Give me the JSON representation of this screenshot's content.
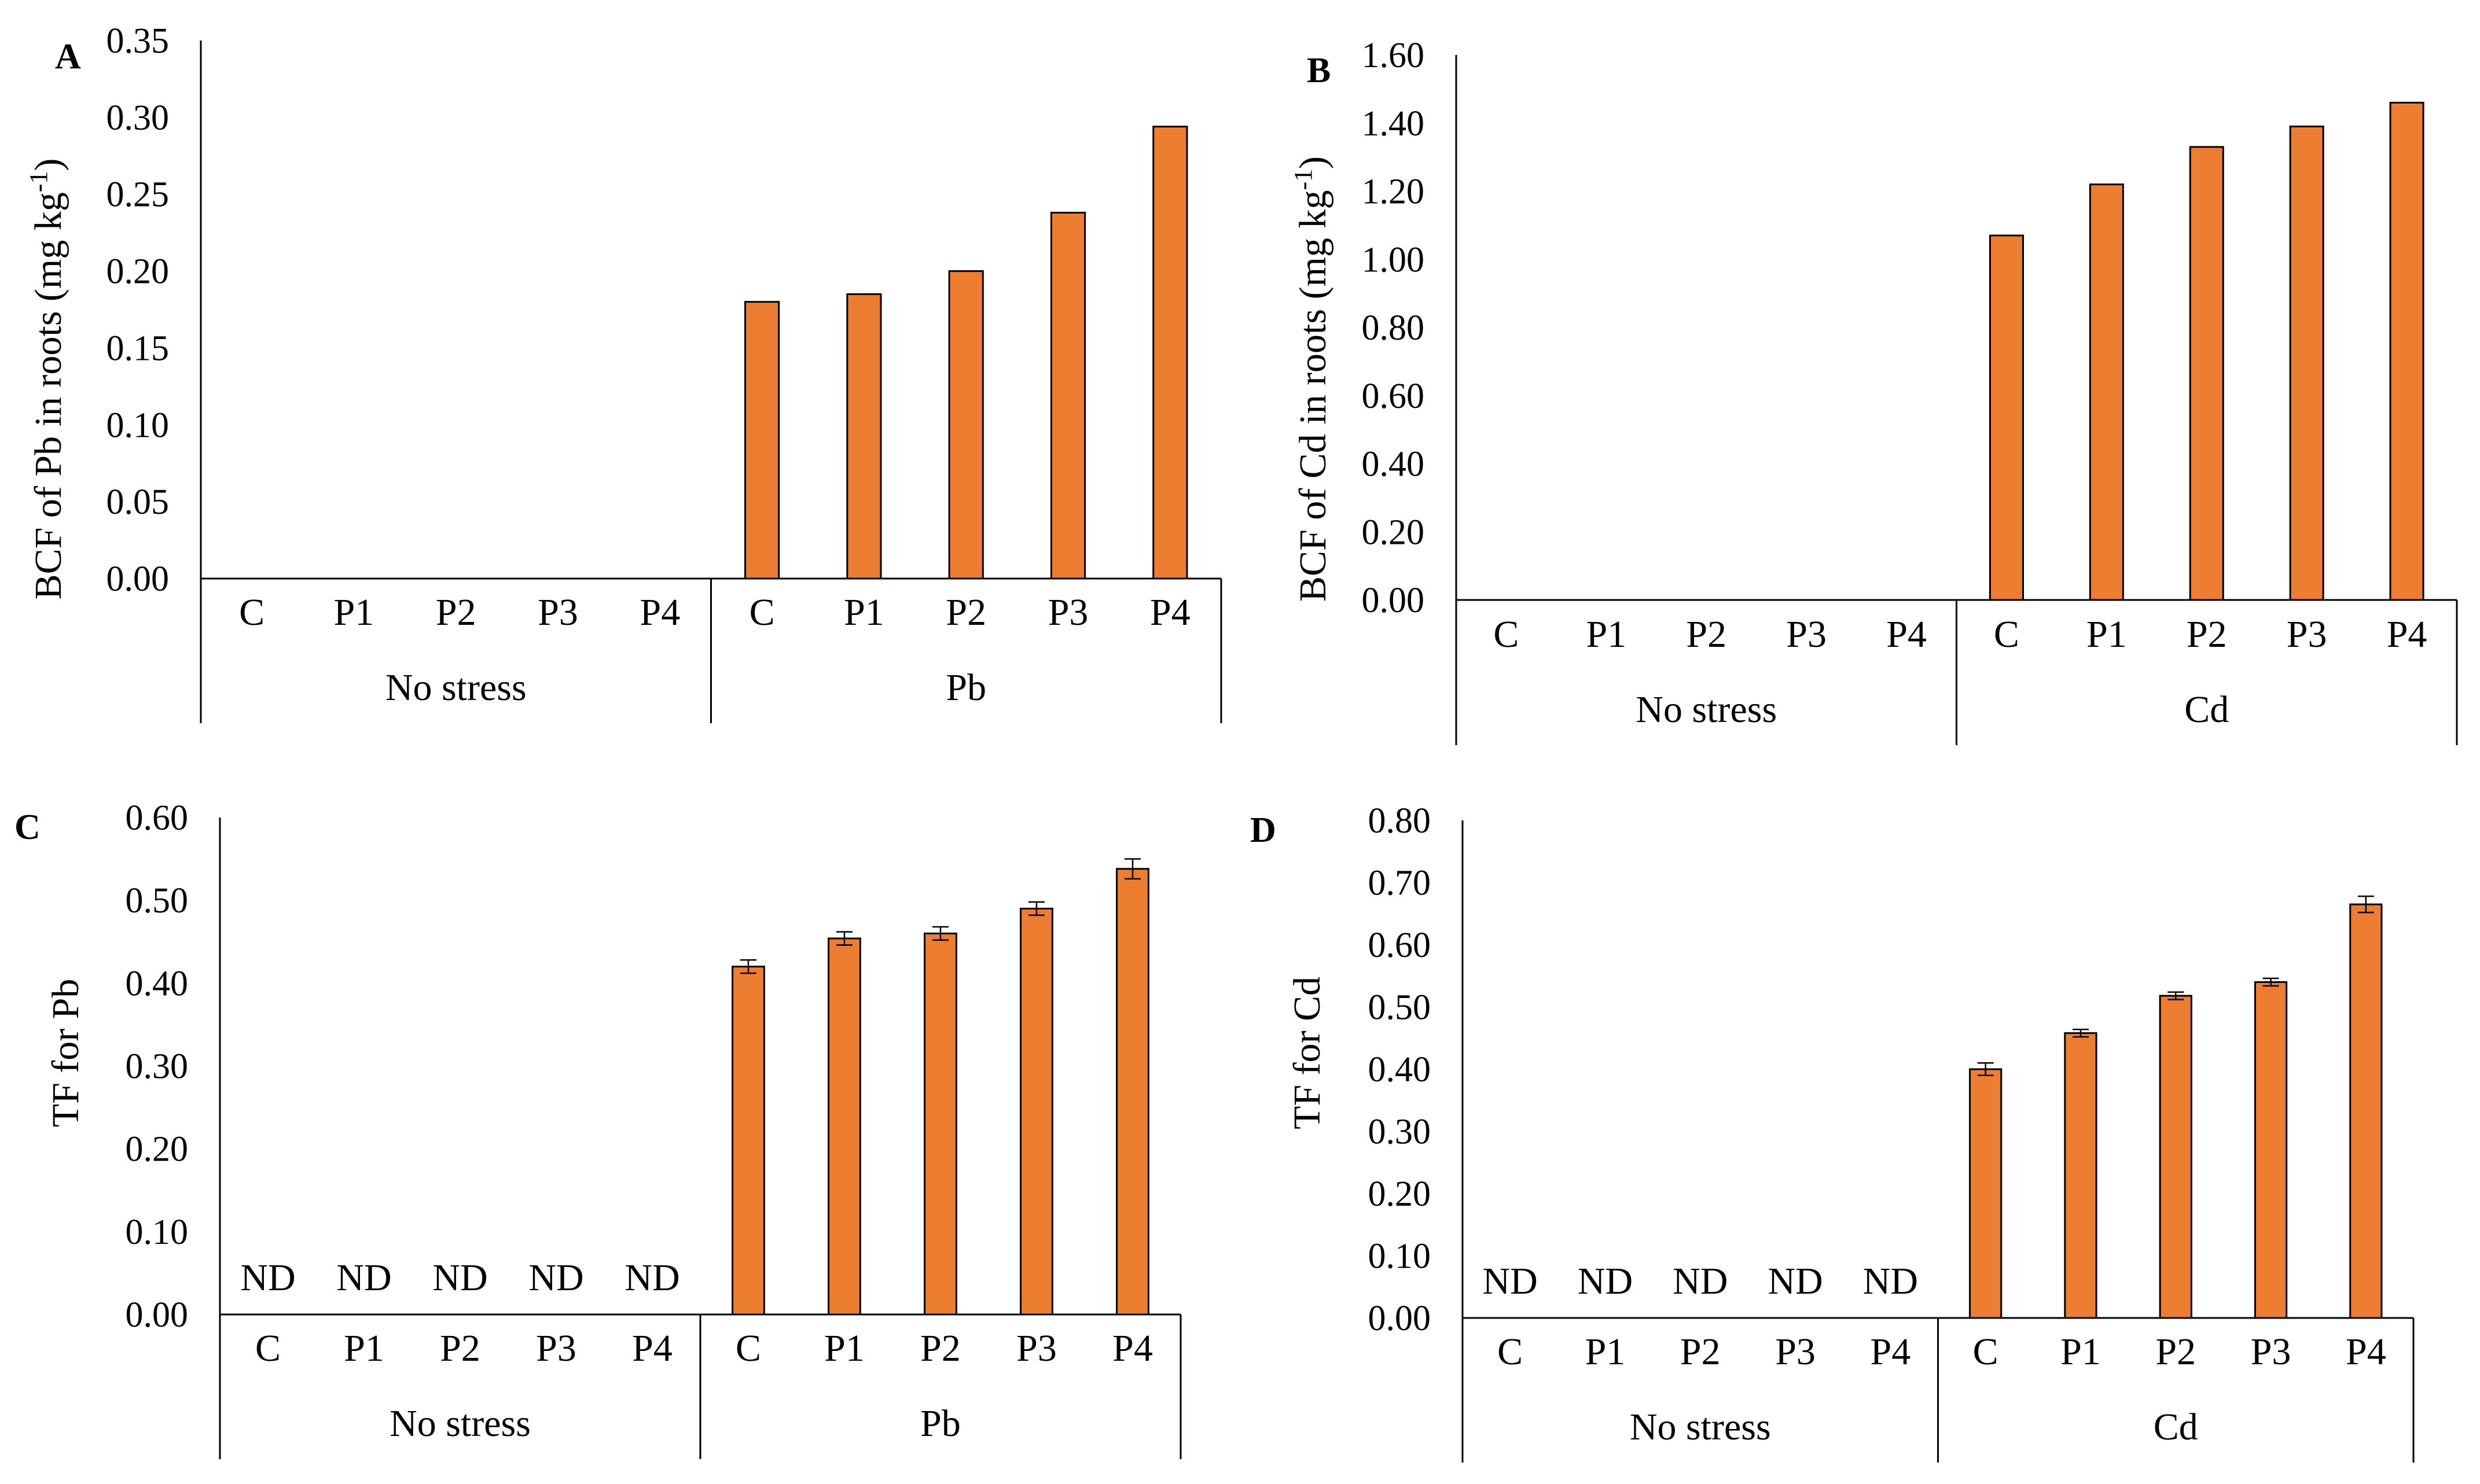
{
  "colors": {
    "bar_fill": "#ED7D31",
    "bar_stroke": "#000000",
    "axis": "#000000"
  },
  "chart_data": [
    {
      "panel": "A",
      "type": "bar",
      "title": "",
      "ylabel": "BCF of Pb in roots (mg kg-1)",
      "ylabel_main": "BCF of Pb in roots (mg kg",
      "ylabel_sup": "-1",
      "ylabel_end": ")",
      "ylim": [
        0,
        0.35
      ],
      "yticks": [
        0,
        0.05,
        0.1,
        0.15,
        0.2,
        0.25,
        0.3,
        0.35
      ],
      "ytick_labels": [
        "0.00",
        "0.05",
        "0.10",
        "0.15",
        "0.20",
        "0.25",
        "0.30",
        "0.35"
      ],
      "categories": [
        "C",
        "P1",
        "P2",
        "P3",
        "P4",
        "C",
        "P1",
        "P2",
        "P3",
        "P4"
      ],
      "groups": [
        "No stress",
        "Pb"
      ],
      "values": [
        null,
        null,
        null,
        null,
        null,
        0.18,
        0.185,
        0.2,
        0.238,
        0.294
      ],
      "errors": null,
      "annotations": []
    },
    {
      "panel": "B",
      "type": "bar",
      "title": "",
      "ylabel": "BCF of Cd in roots (mg kg-1)",
      "ylabel_main": "BCF of Cd in roots (mg kg",
      "ylabel_sup": "-1",
      "ylabel_end": ")",
      "ylim": [
        0,
        1.6
      ],
      "yticks": [
        0,
        0.2,
        0.4,
        0.6,
        0.8,
        1.0,
        1.2,
        1.4,
        1.6
      ],
      "ytick_labels": [
        "0.00",
        "0.20",
        "0.40",
        "0.60",
        "0.80",
        "1.00",
        "1.20",
        "1.40",
        "1.60"
      ],
      "categories": [
        "C",
        "P1",
        "P2",
        "P3",
        "P4",
        "C",
        "P1",
        "P2",
        "P3",
        "P4"
      ],
      "groups": [
        "No stress",
        "Cd"
      ],
      "values": [
        null,
        null,
        null,
        null,
        null,
        1.07,
        1.22,
        1.33,
        1.39,
        1.46
      ],
      "errors": null,
      "annotations": []
    },
    {
      "panel": "C",
      "type": "bar",
      "title": "",
      "ylabel": "TF for Pb",
      "ylabel_main": "TF for Pb",
      "ylabel_sup": "",
      "ylabel_end": "",
      "ylim": [
        0,
        0.6
      ],
      "yticks": [
        0,
        0.1,
        0.2,
        0.3,
        0.4,
        0.5,
        0.6
      ],
      "ytick_labels": [
        "0.00",
        "0.10",
        "0.20",
        "0.30",
        "0.40",
        "0.50",
        "0.60"
      ],
      "categories": [
        "C",
        "P1",
        "P2",
        "P3",
        "P4",
        "C",
        "P1",
        "P2",
        "P3",
        "P4"
      ],
      "groups": [
        "No stress",
        "Pb"
      ],
      "values": [
        null,
        null,
        null,
        null,
        null,
        0.42,
        0.454,
        0.46,
        0.49,
        0.538
      ],
      "errors": [
        null,
        null,
        null,
        null,
        null,
        0.008,
        0.008,
        0.008,
        0.008,
        0.012
      ],
      "annotations": [
        "ND",
        "ND",
        "ND",
        "ND",
        "ND"
      ]
    },
    {
      "panel": "D",
      "type": "bar",
      "title": "",
      "ylabel": "TF for Cd",
      "ylabel_main": "TF for Cd",
      "ylabel_sup": "",
      "ylabel_end": "",
      "ylim": [
        0,
        0.8
      ],
      "yticks": [
        0,
        0.1,
        0.2,
        0.3,
        0.4,
        0.5,
        0.6,
        0.7,
        0.8
      ],
      "ytick_labels": [
        "0.00",
        "0.10",
        "0.20",
        "0.30",
        "0.40",
        "0.50",
        "0.60",
        "0.70",
        "0.80"
      ],
      "categories": [
        "C",
        "P1",
        "P2",
        "P3",
        "P4",
        "C",
        "P1",
        "P2",
        "P3",
        "P4"
      ],
      "groups": [
        "No stress",
        "Cd"
      ],
      "values": [
        null,
        null,
        null,
        null,
        null,
        0.4,
        0.458,
        0.518,
        0.54,
        0.665
      ],
      "errors": [
        null,
        null,
        null,
        null,
        null,
        0.01,
        0.006,
        0.006,
        0.006,
        0.013
      ],
      "annotations": [
        "ND",
        "ND",
        "ND",
        "ND",
        "ND"
      ]
    }
  ]
}
